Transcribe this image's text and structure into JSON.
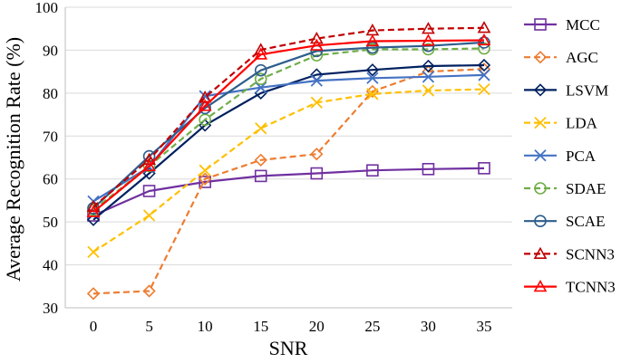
{
  "chart_data": {
    "type": "line",
    "title": "",
    "xlabel": "SNR",
    "ylabel": "Average Recognition Rate (%)",
    "x": [
      0,
      5,
      10,
      15,
      20,
      25,
      30,
      35
    ],
    "xlim": [
      0,
      35
    ],
    "ylim": [
      30,
      100
    ],
    "yticks": [
      30,
      40,
      50,
      60,
      70,
      80,
      90,
      100
    ],
    "grid": "horizontal",
    "legend_position": "right",
    "series": [
      {
        "name": "MCC",
        "color": "#7030a0",
        "dash": "solid",
        "marker": "square",
        "values": [
          51.5,
          57.2,
          59.3,
          60.7,
          61.3,
          62.0,
          62.3,
          62.5
        ]
      },
      {
        "name": "AGC",
        "color": "#ed7d31",
        "dash": "dashed",
        "marker": "diamond",
        "values": [
          33.3,
          33.9,
          60.0,
          64.4,
          65.8,
          80.4,
          85.0,
          85.6
        ]
      },
      {
        "name": "LSVM",
        "color": "#002060",
        "dash": "solid",
        "marker": "diamond",
        "values": [
          50.5,
          61.3,
          72.5,
          80.0,
          84.3,
          85.4,
          86.3,
          86.5
        ]
      },
      {
        "name": "LDA",
        "color": "#ffc000",
        "dash": "dashed",
        "marker": "x",
        "values": [
          43.0,
          51.5,
          62.0,
          71.8,
          77.8,
          79.8,
          80.6,
          80.9
        ]
      },
      {
        "name": "PCA",
        "color": "#4472c4",
        "dash": "solid",
        "marker": "x",
        "values": [
          54.8,
          62.8,
          79.3,
          81.3,
          82.9,
          83.5,
          83.8,
          84.2
        ]
      },
      {
        "name": "SDAE",
        "color": "#70ad47",
        "dash": "dashed",
        "marker": "circle",
        "values": [
          52.8,
          63.0,
          73.8,
          83.3,
          88.8,
          90.2,
          90.2,
          90.4
        ]
      },
      {
        "name": "SCAE",
        "color": "#2e5d8c",
        "dash": "solid",
        "marker": "circle",
        "values": [
          53.2,
          65.3,
          76.5,
          85.3,
          89.8,
          90.6,
          91.0,
          91.8
        ]
      },
      {
        "name": "SCNN3",
        "color": "#c00000",
        "dash": "dashed",
        "marker": "triangle",
        "values": [
          53.5,
          64.5,
          79.0,
          90.1,
          92.7,
          94.6,
          95.0,
          95.2
        ]
      },
      {
        "name": "TCNN3",
        "color": "#ff0000",
        "dash": "solid",
        "marker": "triangle",
        "values": [
          52.3,
          63.0,
          77.0,
          89.0,
          91.1,
          92.1,
          92.2,
          92.3
        ]
      }
    ]
  }
}
